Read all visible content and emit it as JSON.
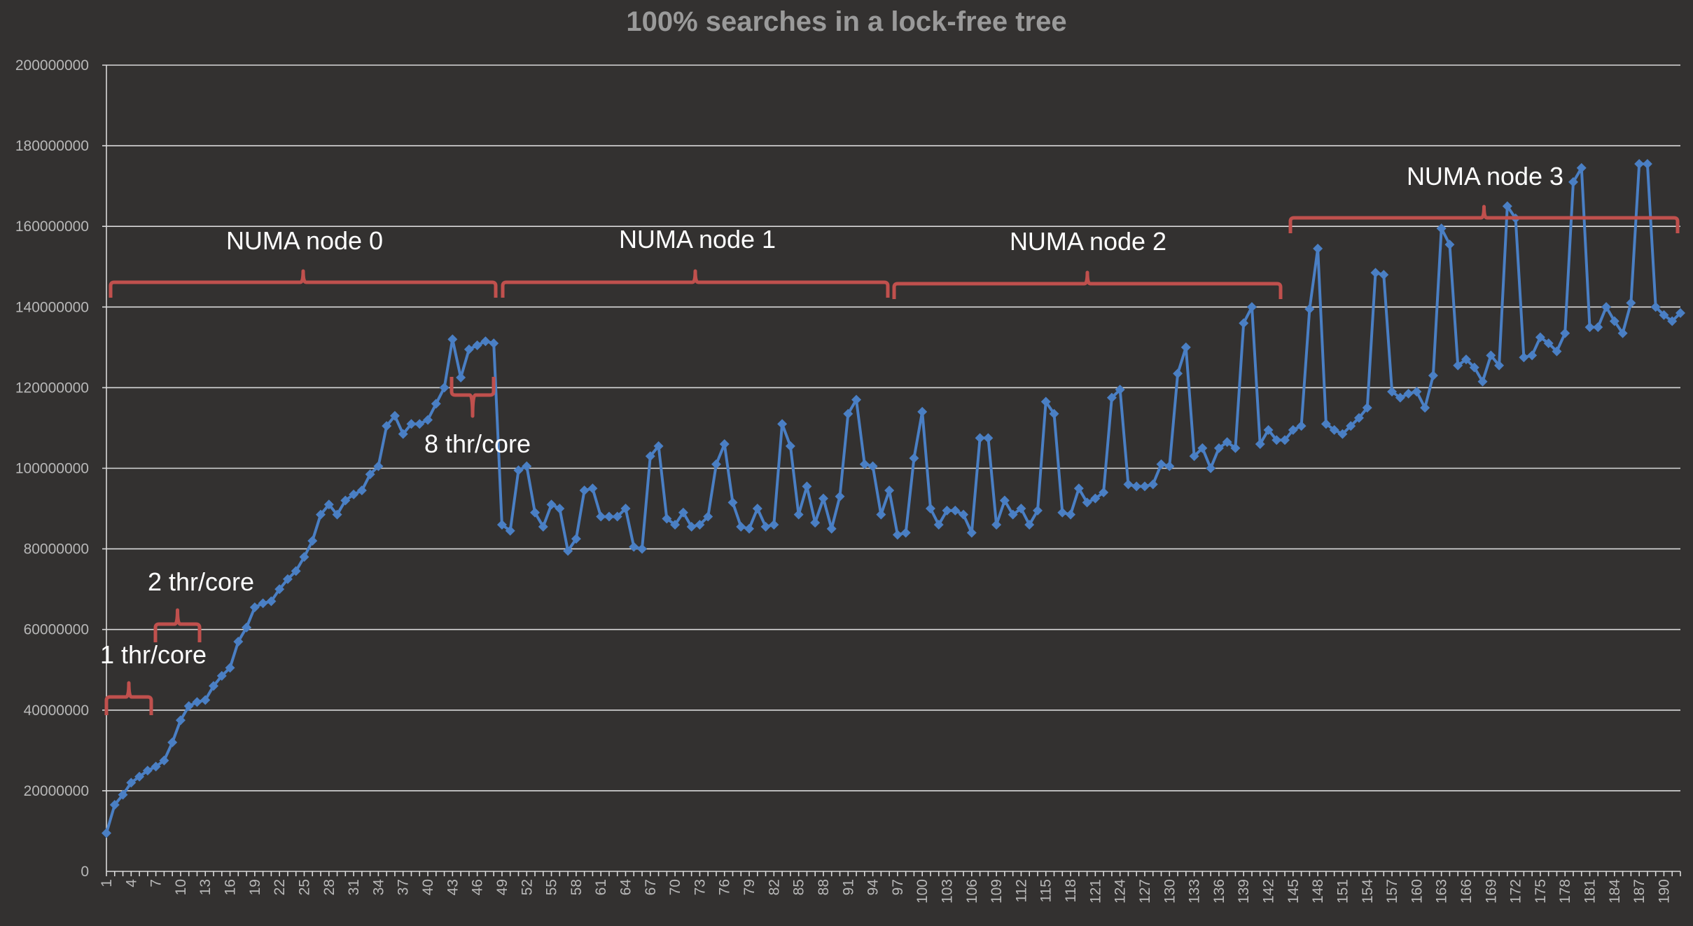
{
  "chart_data": {
    "type": "line",
    "title": "100% searches in a lock-free tree",
    "xlabel": "",
    "ylabel": "",
    "ylim": [
      0,
      200000000
    ],
    "yticks": [
      "0",
      "20000000",
      "40000000",
      "60000000",
      "80000000",
      "100000000",
      "120000000",
      "140000000",
      "160000000",
      "180000000",
      "200000000"
    ],
    "xtick_labels": [
      "1",
      "4",
      "7",
      "10",
      "13",
      "16",
      "19",
      "22",
      "25",
      "28",
      "31",
      "34",
      "37",
      "40",
      "43",
      "46",
      "49",
      "52",
      "55",
      "58",
      "61",
      "64",
      "67",
      "70",
      "73",
      "76",
      "79",
      "82",
      "85",
      "88",
      "91",
      "94",
      "97",
      "100",
      "103",
      "106",
      "109",
      "112",
      "115",
      "118",
      "121",
      "124",
      "127",
      "130",
      "133",
      "136",
      "139",
      "142",
      "145",
      "148",
      "151",
      "154",
      "157",
      "160",
      "163",
      "166",
      "169",
      "172",
      "175",
      "178",
      "181",
      "184",
      "187",
      "190"
    ],
    "grid": "horizontal",
    "legend": "none",
    "series_color": "#4a7fc4",
    "annotation_color": "#c0504d",
    "x": [
      1,
      2,
      3,
      4,
      5,
      6,
      7,
      8,
      9,
      10,
      11,
      12,
      13,
      14,
      15,
      16,
      17,
      18,
      19,
      20,
      21,
      22,
      23,
      24,
      25,
      26,
      27,
      28,
      29,
      30,
      31,
      32,
      33,
      34,
      35,
      36,
      37,
      38,
      39,
      40,
      41,
      42,
      43,
      44,
      45,
      46,
      47,
      48,
      49,
      50,
      51,
      52,
      53,
      54,
      55,
      56,
      57,
      58,
      59,
      60,
      61,
      62,
      63,
      64,
      65,
      66,
      67,
      68,
      69,
      70,
      71,
      72,
      73,
      74,
      75,
      76,
      77,
      78,
      79,
      80,
      81,
      82,
      83,
      84,
      85,
      86,
      87,
      88,
      89,
      90,
      91,
      92,
      93,
      94,
      95,
      96,
      97,
      98,
      99,
      100,
      101,
      102,
      103,
      104,
      105,
      106,
      107,
      108,
      109,
      110,
      111,
      112,
      113,
      114,
      115,
      116,
      117,
      118,
      119,
      120,
      121,
      122,
      123,
      124,
      125,
      126,
      127,
      128,
      129,
      130,
      131,
      132,
      133,
      134,
      135,
      136,
      137,
      138,
      139,
      140,
      141,
      142,
      143,
      144,
      145,
      146,
      147,
      148,
      149,
      150,
      151,
      152,
      153,
      154,
      155,
      156,
      157,
      158,
      159,
      160,
      161,
      162,
      163,
      164,
      165,
      166,
      167,
      168,
      169,
      170,
      171,
      172,
      173,
      174,
      175,
      176,
      177,
      178,
      179,
      180,
      181,
      182,
      183,
      184,
      185,
      186,
      187,
      188,
      189,
      190,
      191,
      192
    ],
    "series": [
      {
        "values": [
          9500000,
          16500000,
          19000000,
          22000000,
          23500000,
          25000000,
          26000000,
          27500000,
          32000000,
          37500000,
          41000000,
          42000000,
          42500000,
          46000000,
          48500000,
          50500000,
          57000000,
          60500000,
          65500000,
          66500000,
          67000000,
          70000000,
          72500000,
          74500000,
          78000000,
          82000000,
          88500000,
          91000000,
          88500000,
          92000000,
          93500000,
          94500000,
          98500000,
          100500000,
          110500000,
          113000000,
          108500000,
          111000000,
          111000000,
          112000000,
          116000000,
          120000000,
          132000000,
          122500000,
          129500000,
          130500000,
          131500000,
          131000000,
          86000000,
          84500000,
          99500000,
          100500000,
          89000000,
          85500000,
          91000000,
          90000000,
          79500000,
          82500000,
          94500000,
          95000000,
          88000000,
          88000000,
          88000000,
          90000000,
          80500000,
          80000000,
          103000000,
          105500000,
          87500000,
          86000000,
          89000000,
          85500000,
          86000000,
          88000000,
          101000000,
          106000000,
          91500000,
          85500000,
          85000000,
          90000000,
          85500000,
          86000000,
          111000000,
          105500000,
          88500000,
          95500000,
          86500000,
          92500000,
          85000000,
          93000000,
          113500000,
          117000000,
          101000000,
          100500000,
          88500000,
          94500000,
          83500000,
          84000000,
          102500000,
          114000000,
          90000000,
          86000000,
          89500000,
          89500000,
          88500000,
          84000000,
          107500000,
          107500000,
          86000000,
          92000000,
          88500000,
          90000000,
          86000000,
          89500000,
          116500000,
          113500000,
          89000000,
          88500000,
          95000000,
          91500000,
          92500000,
          94000000,
          117500000,
          119500000,
          96000000,
          95500000,
          95500000,
          96000000,
          101000000,
          100500000,
          123500000,
          130000000,
          103000000,
          105000000,
          100000000,
          105000000,
          106500000,
          105000000,
          136000000,
          140000000,
          106000000,
          109500000,
          107000000,
          107000000,
          109500000,
          110500000,
          139500000,
          154500000,
          111000000,
          109500000,
          108500000,
          110500000,
          112500000,
          115000000,
          148500000,
          148000000,
          119000000,
          117500000,
          118500000,
          119000000,
          115000000,
          123000000,
          159500000,
          155500000,
          125500000,
          127000000,
          125000000,
          121500000,
          128000000,
          125500000,
          165000000,
          162000000,
          127500000,
          128000000,
          132500000,
          131000000,
          129000000,
          133500000,
          171000000,
          174500000,
          135000000,
          135000000,
          140000000,
          136500000,
          133500000,
          141000000,
          175500000,
          175500000,
          140000000,
          138000000,
          136500000,
          138500000
        ]
      }
    ],
    "annotations": {
      "numa0": "NUMA node 0",
      "numa1": "NUMA node 1",
      "numa2": "NUMA node 2",
      "numa3": "NUMA node 3",
      "thr1": "1 thr/core",
      "thr2": "2 thr/core",
      "thr8": "8 thr/core"
    }
  }
}
